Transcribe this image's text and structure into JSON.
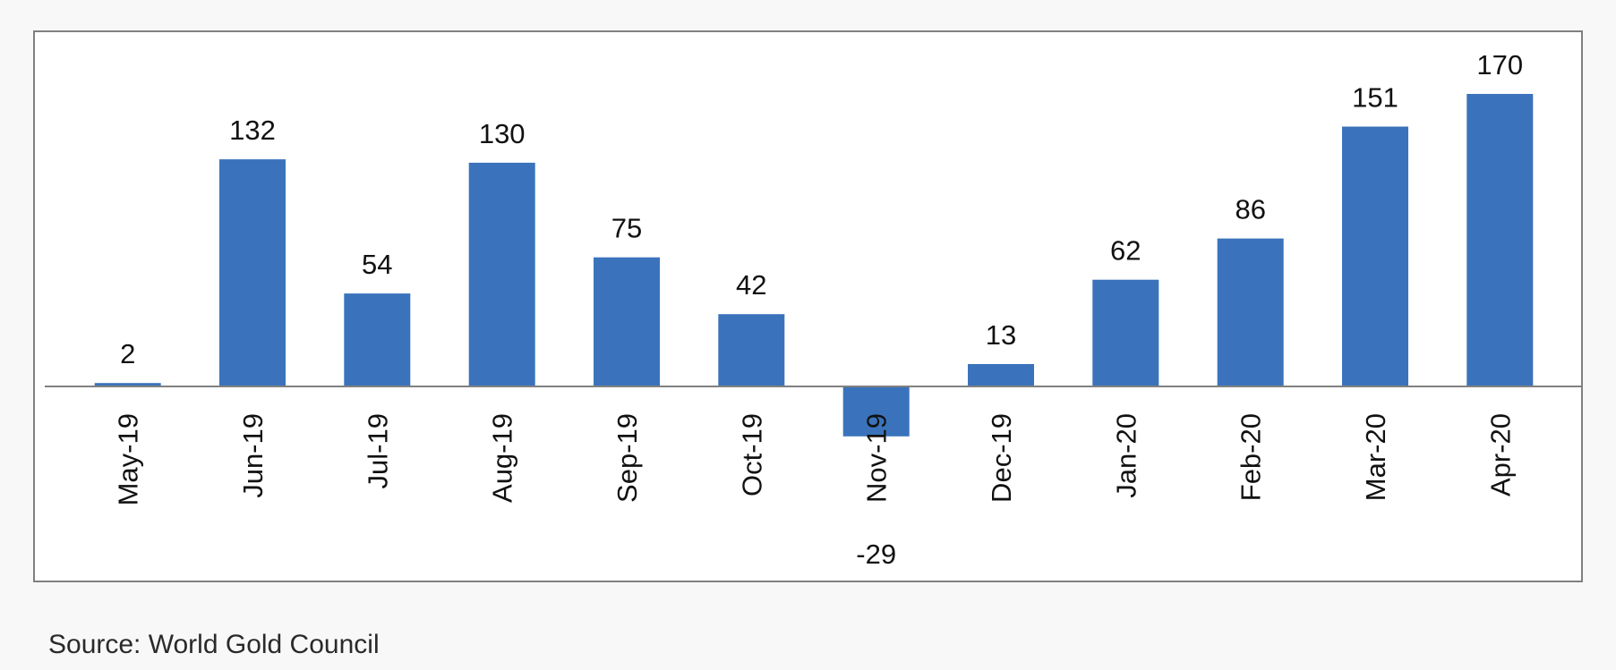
{
  "source_note": "Source: World Gold Council",
  "chart_data": {
    "type": "bar",
    "categories": [
      "May-19",
      "Jun-19",
      "Jul-19",
      "Aug-19",
      "Sep-19",
      "Oct-19",
      "Nov-19",
      "Dec-19",
      "Jan-20",
      "Feb-20",
      "Mar-20",
      "Apr-20"
    ],
    "values": [
      2,
      132,
      54,
      130,
      75,
      42,
      -29,
      13,
      62,
      86,
      151,
      170
    ],
    "data_labels": [
      "2",
      "132",
      "54",
      "130",
      "75",
      "42",
      "-29",
      "13",
      "62",
      "86",
      "151",
      "170"
    ],
    "title": "",
    "xlabel": "",
    "ylabel": "",
    "ylim": [
      -29,
      170
    ],
    "grid": false,
    "legend": "none",
    "bar_color": "#3a73bb",
    "axis_color": "#808080",
    "frame_color": "#808080",
    "text_color": "#111111"
  }
}
